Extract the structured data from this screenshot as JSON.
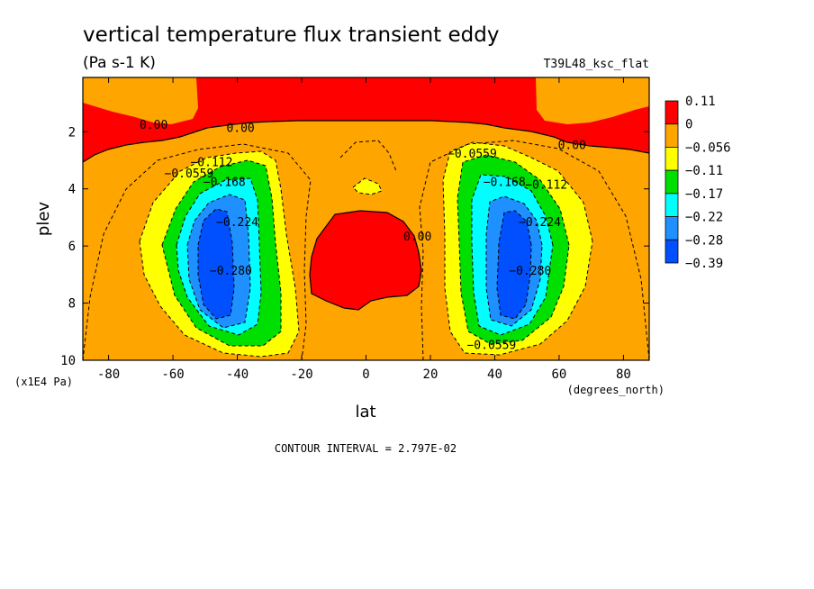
{
  "chart_data": {
    "type": "contour",
    "title": "vertical temperature flux transient eddy",
    "units": "(Pa s-1 K)",
    "run_label": "T39L48_ksc_flat",
    "xlabel": "lat",
    "x_units": "(degrees_north)",
    "ylabel": "plev",
    "y_units": "(x1E4 Pa)",
    "x_ticks": [
      "-80",
      "-60",
      "-40",
      "-20",
      "0",
      "20",
      "40",
      "60",
      "80"
    ],
    "y_ticks": [
      "2",
      "4",
      "6",
      "8",
      "10"
    ],
    "xlim": [
      -88,
      88
    ],
    "ylim": [
      10,
      0.1
    ],
    "y_inverted": true,
    "contour_interval_text": "CONTOUR INTERVAL = 2.797E-02",
    "colorbar": {
      "levels": [
        "0.11",
        "0",
        "−0.056",
        "−0.11",
        "−0.17",
        "−0.22",
        "−0.28",
        "−0.39"
      ],
      "colors": [
        "#ff0000",
        "#ffa500",
        "#ffff00",
        "#00e000",
        "#00ffff",
        "#1e90ff",
        "#0050ff"
      ]
    },
    "contour_labels": [
      {
        "text": "0.00",
        "lat": -66,
        "plev": 1.9
      },
      {
        "text": "0.00",
        "lat": -39,
        "plev": 2.0
      },
      {
        "text": "0.00",
        "lat": 16,
        "plev": 5.8
      },
      {
        "text": "0.00",
        "lat": 64,
        "plev": 2.6
      },
      {
        "text": "−0.0559",
        "lat": -55,
        "plev": 3.6
      },
      {
        "text": "−0.112",
        "lat": -48,
        "plev": 3.2
      },
      {
        "text": "−0.168",
        "lat": -44,
        "plev": 3.9
      },
      {
        "text": "−0.224",
        "lat": -40,
        "plev": 5.3
      },
      {
        "text": "−0.280",
        "lat": -42,
        "plev": 7.0
      },
      {
        "text": "−0.0559",
        "lat": 33,
        "plev": 2.9
      },
      {
        "text": "−0.168",
        "lat": 43,
        "plev": 3.9
      },
      {
        "text": "−0.112",
        "lat": 56,
        "plev": 4.0
      },
      {
        "text": "−0.224",
        "lat": 54,
        "plev": 5.3
      },
      {
        "text": "−0.280",
        "lat": 51,
        "plev": 7.0
      },
      {
        "text": "−0.0559",
        "lat": 39,
        "plev": 9.6
      }
    ],
    "regions": [
      {
        "level": "positive",
        "color": "#ff0000",
        "desc": "upper layer and equatorial core"
      },
      {
        "level": "min",
        "value": -0.39,
        "lat": -47,
        "plev": 6.7
      },
      {
        "level": "min",
        "value": -0.39,
        "lat": 47,
        "plev": 6.7
      }
    ]
  }
}
